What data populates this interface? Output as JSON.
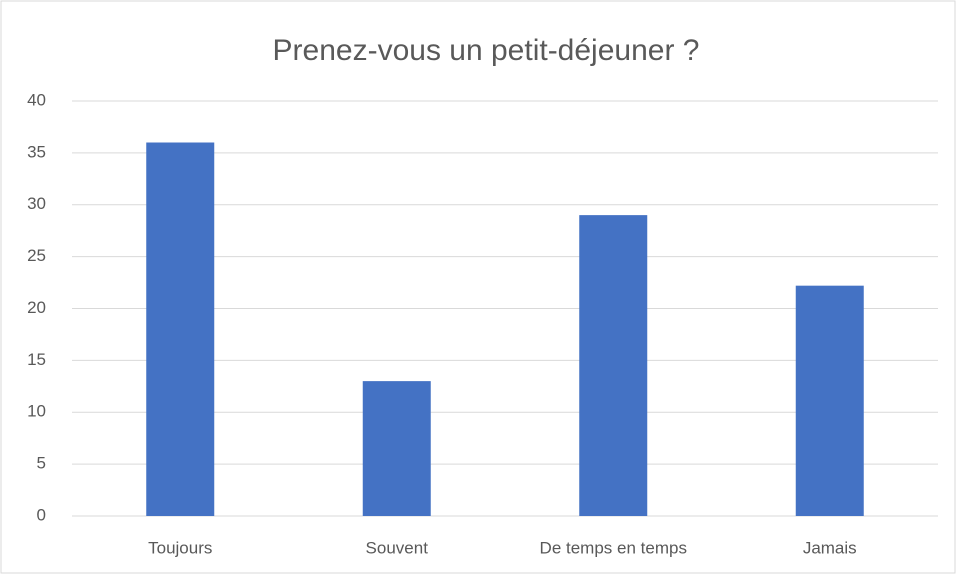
{
  "chart_data": {
    "type": "bar",
    "title": "Prenez-vous un petit-déjeuner ?",
    "categories": [
      "Toujours",
      "Souvent",
      "De temps en temps",
      "Jamais"
    ],
    "values": [
      36,
      13,
      29,
      22.2
    ],
    "color": "#4472c4",
    "ylim": [
      0,
      40
    ],
    "yticks": [
      0,
      5,
      10,
      15,
      20,
      25,
      30,
      35,
      40
    ],
    "grid": true
  }
}
